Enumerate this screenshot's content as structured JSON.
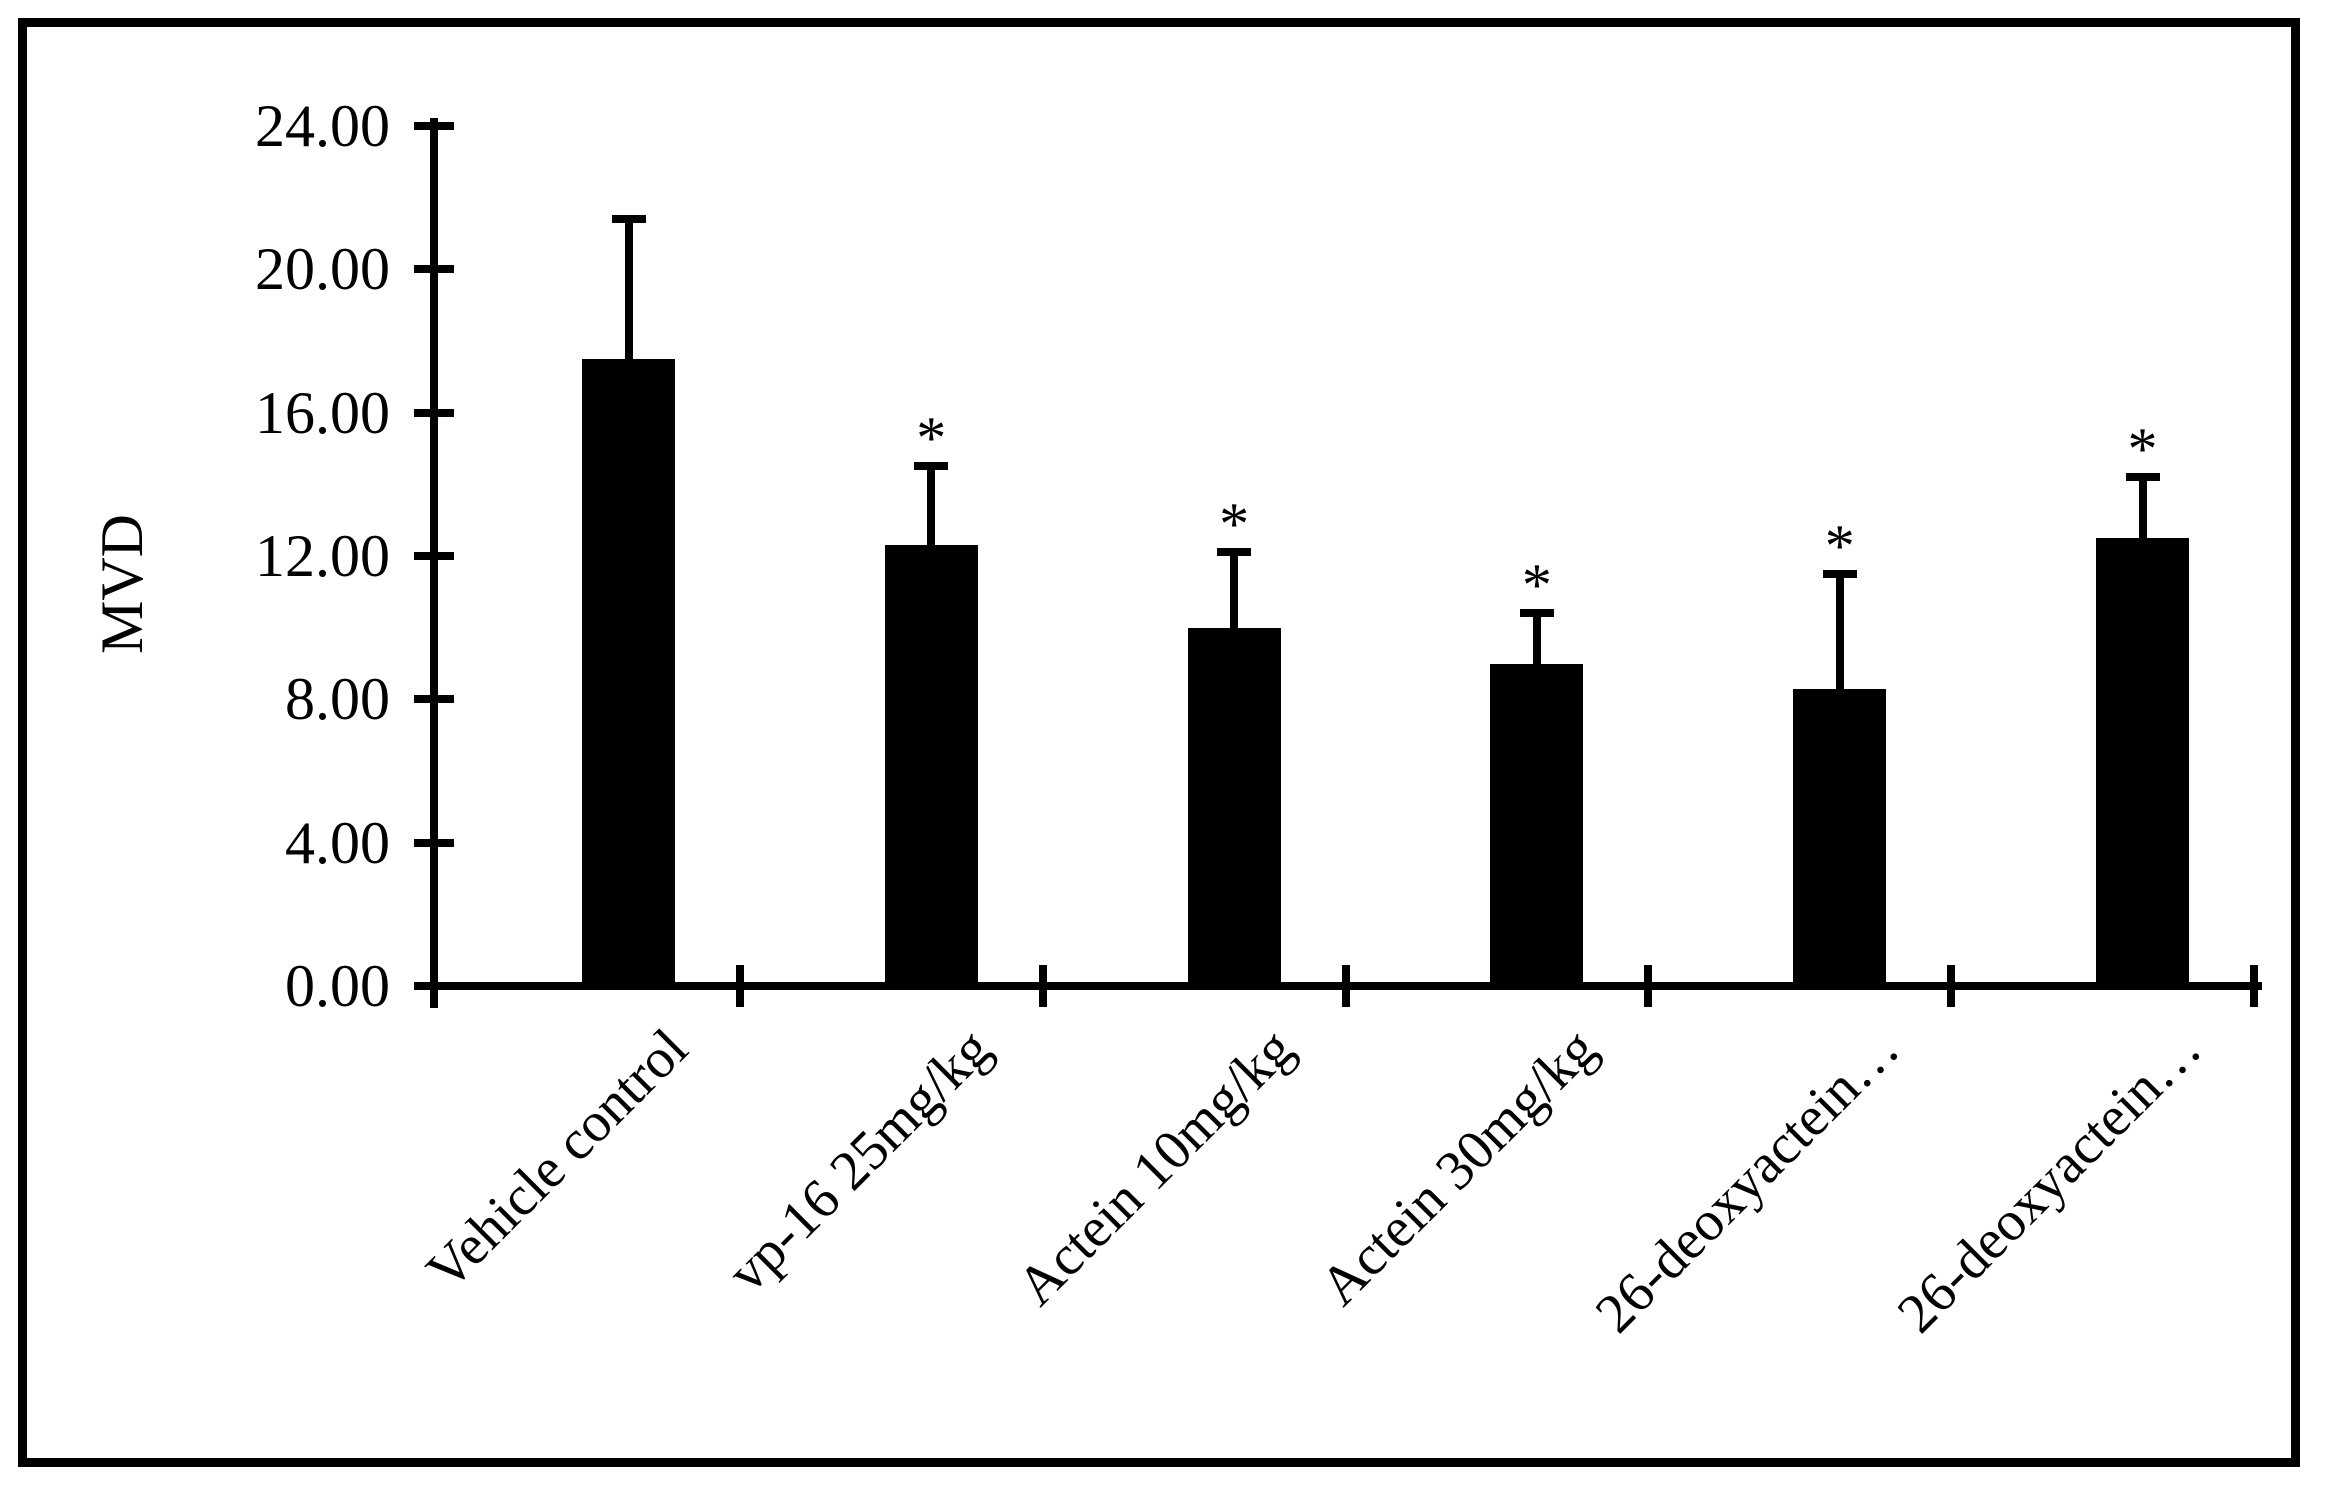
{
  "figure": {
    "background": "#ffffff",
    "border_color": "#000000"
  },
  "chart_data": {
    "type": "bar",
    "title": "",
    "xlabel": "",
    "ylabel": "MVD",
    "categories": [
      "Vehicle control",
      "vp-16 25mg/kg",
      "Actein 10mg/kg",
      "Actein 30mg/kg",
      "26-deoxyactein…",
      "26-deoxyactein…"
    ],
    "values": [
      17.5,
      12.3,
      10.0,
      9.0,
      8.3,
      12.5
    ],
    "error_up": [
      3.9,
      2.2,
      2.1,
      1.4,
      3.2,
      1.7
    ],
    "error_tops": [
      21.4,
      14.5,
      12.1,
      10.4,
      11.5,
      14.2
    ],
    "significance": [
      "",
      "*",
      "*",
      "*",
      "*",
      "*"
    ],
    "ylim": [
      0,
      24
    ],
    "ytick_step": 4,
    "ytick_labels": [
      "0.00",
      "4.00",
      "8.00",
      "12.00",
      "16.00",
      "20.00",
      "24.00"
    ],
    "bar_color": "#000000",
    "axis_color": "#000000",
    "background": "#ffffff",
    "grid": false,
    "legend": "none",
    "xlabel_rotation_deg": -45
  }
}
